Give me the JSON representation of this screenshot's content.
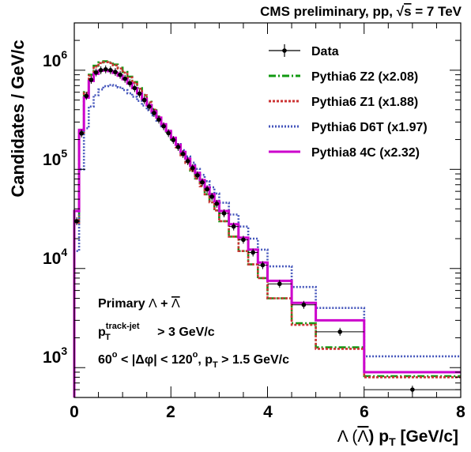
{
  "chart_data": {
    "type": "line",
    "title": "CMS preliminary, pp, √s = 7 TeV",
    "header": {
      "prefix": "CMS preliminary, pp, ",
      "sqrt_symbol": "√",
      "sqrt_arg": "s",
      "suffix": " = 7 TeV"
    },
    "xlabel": "Λ (Λ) p_T [GeV/c]",
    "xlabel_parts": {
      "lam": "Λ (",
      "lambar": "Λ",
      "close": ") p",
      "sub": "T",
      "unit": " [GeV/c]"
    },
    "ylabel": "Candidates / GeV/c",
    "xlim": [
      0,
      8
    ],
    "ylim": [
      500,
      3000000
    ],
    "yscale": "log",
    "x_ticks": [
      "0",
      "2",
      "4",
      "6",
      "8"
    ],
    "y_ticks": [
      {
        "base": "10",
        "exp": "3",
        "value": 1000
      },
      {
        "base": "10",
        "exp": "4",
        "value": 10000
      },
      {
        "base": "10",
        "exp": "5",
        "value": 100000
      },
      {
        "base": "10",
        "exp": "6",
        "value": 1000000
      }
    ],
    "grid": false,
    "legend_position": "top-right",
    "bin_edges": [
      0.0,
      0.1,
      0.2,
      0.3,
      0.4,
      0.5,
      0.6,
      0.7,
      0.8,
      0.9,
      1.0,
      1.1,
      1.2,
      1.3,
      1.4,
      1.5,
      1.6,
      1.7,
      1.8,
      1.9,
      2.0,
      2.1,
      2.2,
      2.3,
      2.4,
      2.5,
      2.6,
      2.7,
      2.8,
      2.9,
      3.0,
      3.2,
      3.4,
      3.6,
      3.8,
      4.0,
      4.5,
      5.0,
      6.0,
      8.0
    ],
    "data": {
      "name": "Data",
      "color": "#000000",
      "x": [
        0.05,
        0.15,
        0.25,
        0.35,
        0.45,
        0.55,
        0.65,
        0.75,
        0.85,
        0.95,
        1.05,
        1.15,
        1.25,
        1.35,
        1.45,
        1.55,
        1.65,
        1.75,
        1.85,
        1.95,
        2.05,
        2.15,
        2.25,
        2.35,
        2.45,
        2.55,
        2.65,
        2.75,
        2.85,
        2.95,
        3.1,
        3.3,
        3.5,
        3.7,
        3.9,
        4.25,
        4.75,
        5.5,
        7.0
      ],
      "y": [
        30000,
        230000,
        550000,
        800000,
        950000,
        1000000,
        1020000,
        1000000,
        960000,
        900000,
        820000,
        740000,
        660000,
        580000,
        500000,
        430000,
        370000,
        318000,
        272000,
        232000,
        198000,
        168000,
        143000,
        121000,
        103000,
        87000,
        74000,
        63000,
        53000,
        45000,
        36000,
        26500,
        19500,
        14500,
        10800,
        7000,
        4300,
        2300,
        600
      ]
    },
    "series": [
      {
        "name": "Pythia6 Z2 (x2.08)",
        "color": "#119911",
        "dash": "9,3,2,3",
        "values": [
          30000,
          240000,
          600000,
          900000,
          1110000,
          1200000,
          1230000,
          1200000,
          1140000,
          1060000,
          960000,
          860000,
          760000,
          660000,
          565000,
          480000,
          405000,
          340000,
          285000,
          240000,
          200000,
          168000,
          140000,
          117000,
          97000,
          81000,
          68000,
          56000,
          46500,
          38500,
          30000,
          21000,
          15000,
          11000,
          8000,
          5000,
          2800,
          1600,
          820
        ]
      },
      {
        "name": "Pythia6 Z1 (x1.88)",
        "color": "#cc3333",
        "dash": "3,2",
        "values": [
          29000,
          235000,
          590000,
          880000,
          1090000,
          1180000,
          1205000,
          1180000,
          1120000,
          1040000,
          945000,
          845000,
          748000,
          650000,
          558000,
          474000,
          400000,
          336000,
          282000,
          238000,
          199000,
          167000,
          139000,
          116000,
          96500,
          80500,
          67500,
          56000,
          46500,
          38500,
          30000,
          21000,
          15000,
          11000,
          8000,
          5000,
          2700,
          1550,
          800
        ]
      },
      {
        "name": "Pythia6 D6T (x1.97)",
        "color": "#4455bb",
        "dash": "2,2",
        "values": [
          15000,
          100000,
          260000,
          430000,
          560000,
          640000,
          690000,
          710000,
          700000,
          670000,
          630000,
          585000,
          540000,
          490000,
          440000,
          395000,
          350000,
          310000,
          272000,
          238000,
          207000,
          180000,
          156000,
          135000,
          117000,
          101000,
          88000,
          76000,
          66000,
          57000,
          46000,
          35000,
          26500,
          20000,
          15500,
          10500,
          6500,
          4000,
          1300
        ]
      },
      {
        "name": "Pythia8 4C (x2.32)",
        "color": "#cc00cc",
        "dash": "",
        "values": [
          38000,
          250000,
          530000,
          780000,
          920000,
          990000,
          1000000,
          980000,
          940000,
          880000,
          810000,
          735000,
          660000,
          585000,
          512000,
          445000,
          385000,
          332000,
          285000,
          244000,
          208000,
          177000,
          150000,
          128000,
          108000,
          92000,
          78000,
          66000,
          56000,
          47500,
          38000,
          28000,
          20500,
          15500,
          11500,
          7500,
          4500,
          3000,
          900
        ]
      }
    ],
    "annotations": {
      "line1": {
        "prefix": "Primary ",
        "lam": "Λ",
        "plus": " + ",
        "lambar": "Λ"
      },
      "line2": {
        "p": "p",
        "sup": "track-jet",
        "sub": "T",
        "rest": " > 3 GeV/c"
      },
      "line3": {
        "t1": "60",
        "o1": "o",
        "t2": " < |Δφ| < 120",
        "o2": "o",
        "t3": ", p",
        "sub": "T",
        "t4": " > 1.5 GeV/c"
      }
    }
  }
}
